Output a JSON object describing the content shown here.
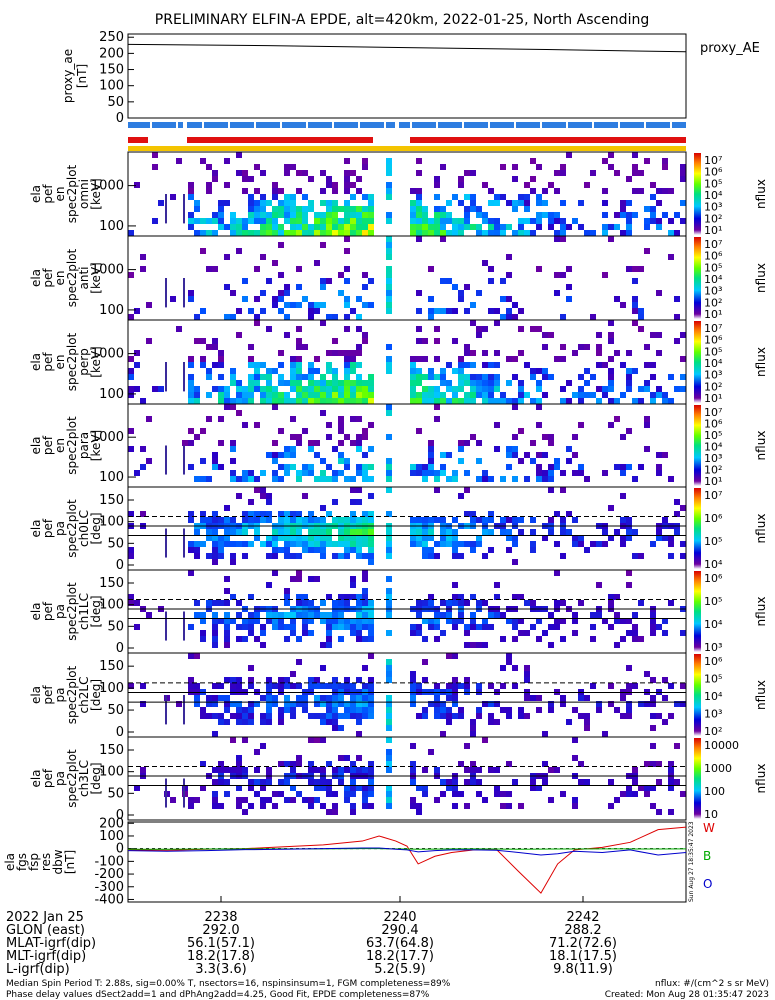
{
  "title": "PRELIMINARY ELFIN-A EPDE, alt=420km, 2022-01-25, North Ascending",
  "chart_data": [
    {
      "type": "line",
      "panel": "proxy_ae",
      "ylabel": [
        "proxy_ae",
        "[nT]"
      ],
      "yticks": [
        "250",
        "200",
        "150",
        "100",
        "50",
        "0"
      ],
      "ylim": [
        0,
        260
      ],
      "x": [
        0,
        0.25,
        0.5,
        0.75,
        1
      ],
      "series": [
        {
          "name": "proxy_ae",
          "values": [
            228,
            224,
            218,
            212,
            205
          ],
          "color": "#000000"
        }
      ],
      "legend": "proxy_AE"
    },
    {
      "type": "heatmap",
      "panel": "ela pef en spec2plot omni",
      "ylabel": [
        "ela",
        "pef",
        "en",
        "spec2plot",
        "omni",
        "[keV]"
      ],
      "yticks": [
        "1000",
        "100"
      ],
      "cbar_ticks": [
        "10⁷",
        "10⁶",
        "10⁵",
        "10⁴",
        "10³",
        "10²",
        "10¹"
      ],
      "cbar_label": "nflux"
    },
    {
      "type": "heatmap",
      "panel": "ela pef en spec2plot anti",
      "ylabel": [
        "ela",
        "pef",
        "en",
        "spec2plot",
        "anti",
        "[keV]"
      ],
      "yticks": [
        "1000",
        "100"
      ],
      "cbar_ticks": [
        "10⁷",
        "10⁶",
        "10⁵",
        "10⁴",
        "10³",
        "10²",
        "10¹"
      ],
      "cbar_label": "nflux"
    },
    {
      "type": "heatmap",
      "panel": "ela pef en spec2plot perp",
      "ylabel": [
        "ela",
        "pef",
        "en",
        "spec2plot",
        "perp",
        "[keV]"
      ],
      "yticks": [
        "1000",
        "100"
      ],
      "cbar_ticks": [
        "10⁷",
        "10⁶",
        "10⁵",
        "10⁴",
        "10³",
        "10²",
        "10¹"
      ],
      "cbar_label": "nflux"
    },
    {
      "type": "heatmap",
      "panel": "ela pef en spec2plot para",
      "ylabel": [
        "ela",
        "pef",
        "en",
        "spec2plot",
        "para",
        "[keV]"
      ],
      "yticks": [
        "1000",
        "100"
      ],
      "cbar_ticks": [
        "10⁷",
        "10⁶",
        "10⁵",
        "10⁴",
        "10³",
        "10²",
        "10¹"
      ],
      "cbar_label": "nflux"
    },
    {
      "type": "heatmap",
      "panel": "ela pef pa spec2plot ch0LC",
      "ylabel": [
        "ela",
        "pef",
        "pa",
        "spec2plot",
        "ch0LC",
        "[deg]"
      ],
      "yticks": [
        "150",
        "100",
        "50",
        "0"
      ],
      "cbar_ticks": [
        "10⁷",
        "10⁶",
        "10⁵",
        "10⁴"
      ],
      "cbar_label": "nflux"
    },
    {
      "type": "heatmap",
      "panel": "ela pef pa spec2plot ch1LC",
      "ylabel": [
        "ela",
        "pef",
        "pa",
        "spec2plot",
        "ch1LC",
        "[deg]"
      ],
      "yticks": [
        "150",
        "100",
        "50",
        "0"
      ],
      "cbar_ticks": [
        "10⁶",
        "10⁵",
        "10⁴",
        "10³"
      ],
      "cbar_label": "nflux"
    },
    {
      "type": "heatmap",
      "panel": "ela pef pa spec2plot ch2LC",
      "ylabel": [
        "ela",
        "pef",
        "pa",
        "spec2plot",
        "ch2LC",
        "[deg]"
      ],
      "yticks": [
        "150",
        "100",
        "50",
        "0"
      ],
      "cbar_ticks": [
        "10⁶",
        "10⁵",
        "10⁴",
        "10³",
        "10²"
      ],
      "cbar_label": "nflux"
    },
    {
      "type": "heatmap",
      "panel": "ela pef pa spec2plot ch3LC",
      "ylabel": [
        "ela",
        "pef",
        "pa",
        "spec2plot",
        "ch3LC",
        "[deg]"
      ],
      "yticks": [
        "150",
        "100",
        "50",
        "0"
      ],
      "cbar_ticks": [
        "10000",
        "1000",
        "100",
        "10"
      ],
      "cbar_label": "nflux"
    },
    {
      "type": "line",
      "panel": "ela fgs fsp res dbw",
      "ylabel": [
        "ela",
        "fgs",
        "fsp",
        "res",
        "dbw",
        "[nT]"
      ],
      "yticks": [
        "200",
        "100",
        "0",
        "-100",
        "-200",
        "-300",
        "-400"
      ],
      "ylim": [
        -420,
        210
      ],
      "x": [
        0,
        0.07,
        0.14,
        0.21,
        0.28,
        0.35,
        0.42,
        0.45,
        0.48,
        0.5,
        0.52,
        0.55,
        0.58,
        0.62,
        0.66,
        0.7,
        0.74,
        0.77,
        0.8,
        0.85,
        0.9,
        0.95,
        1
      ],
      "series": [
        {
          "name": "W",
          "color": "#dd0000",
          "values": [
            -10,
            -12,
            -5,
            0,
            15,
            30,
            60,
            100,
            60,
            20,
            -120,
            -60,
            -30,
            -10,
            -5,
            -180,
            -350,
            -120,
            -10,
            10,
            50,
            150,
            170
          ]
        },
        {
          "name": "B",
          "color": "#00aa00",
          "values": [
            -5,
            -5,
            -3,
            -2,
            -2,
            -2,
            0,
            0,
            -2,
            -3,
            -5,
            -4,
            -2,
            -2,
            -3,
            -5,
            -4,
            -3,
            -3,
            -2,
            -2,
            -3,
            -2
          ]
        },
        {
          "name": "O",
          "color": "#0000cc",
          "values": [
            -15,
            -20,
            -15,
            -8,
            -5,
            0,
            5,
            5,
            -5,
            -10,
            -25,
            -15,
            -10,
            -10,
            -12,
            -30,
            -50,
            -40,
            -20,
            -30,
            -10,
            -50,
            -30
          ]
        }
      ]
    }
  ],
  "x_axis": {
    "date_label": "2022 Jan 25",
    "ticks": [
      "2238",
      "2240",
      "2242"
    ],
    "rows": [
      {
        "label": "GLON (east)",
        "values": [
          "292.0",
          "290.4",
          "288.2"
        ]
      },
      {
        "label": "MLAT-igrf(dip)",
        "values": [
          "56.1(57.1)",
          "63.7(64.8)",
          "71.2(72.6)"
        ]
      },
      {
        "label": "MLT-igrf(dip)",
        "values": [
          "18.2(17.8)",
          "18.2(17.7)",
          "18.1(17.5)"
        ]
      },
      {
        "label": "L-igrf(dip)",
        "values": [
          "3.3(3.6)",
          "5.2(5.9)",
          "9.8(11.9)"
        ]
      }
    ]
  },
  "footer": {
    "line1_left": "Median Spin Period T: 2.88s, sig=0.00% T, nsectors=16, nspinsinsum=1, FGM completeness=89%",
    "line2_left": "Phase delay values dSect2add=1 and dPhAng2add=4.25, Good Fit, EPDE completeness=87%",
    "line1_right": "nflux: #/(cm^2 s sr MeV)",
    "line2_right": "Created: Mon Aug 28 01:35:47 2023",
    "side_stamp": "Sun Aug 27 18:35:47 2023"
  }
}
